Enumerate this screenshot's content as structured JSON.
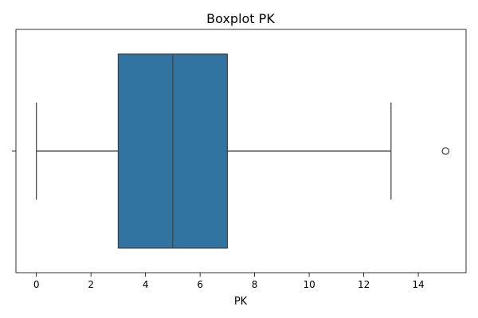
{
  "chart_data": {
    "type": "box",
    "title": "Boxplot PK",
    "xlabel": "PK",
    "ylabel": "",
    "orientation": "horizontal",
    "xlim": [
      -0.75,
      15.75
    ],
    "xticks": [
      0,
      2,
      4,
      6,
      8,
      10,
      12,
      14
    ],
    "grid": false,
    "box": {
      "whisker_low": 0,
      "q1": 3,
      "median": 5,
      "q3": 7,
      "whisker_high": 13,
      "outliers": [
        15
      ]
    },
    "colors": {
      "box_fill": "#3274a1",
      "line": "#3f3f3f"
    }
  }
}
